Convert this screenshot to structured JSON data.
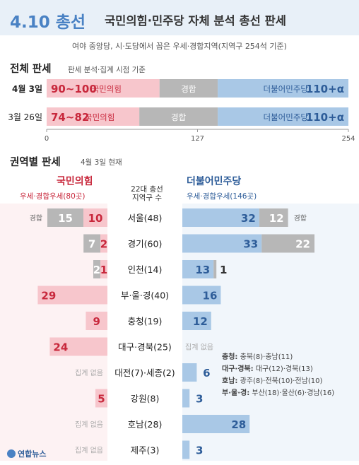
{
  "header": {
    "title_a": "4.10 총선",
    "title_b": "국민의힘·민주당 자체 분석 총선 판세",
    "subtitle": "여야 중앙당, 시·도당에서 꼽은 우세·경합지역(지역구 254석 기준)"
  },
  "overall": {
    "title": "전체 판세",
    "note": "판세 분석·집계 시점 기준"
  },
  "regional": {
    "title": "권역별 판세",
    "note": "4월 3일 현재",
    "ppp_name": "국민의힘",
    "ppp_sub": "우세·경합우세(80곳)",
    "dp_name": "더불어민주당",
    "dp_sub": "우세·경합우세(146곳)",
    "center_head_1": "22대 총선",
    "center_head_2": "지역구 수",
    "contested_label": "경합",
    "no_count_label": "집계 없음"
  },
  "legend_notes": [
    {
      "bold": "충청:",
      "rest": " 충북(8)·충남(11)"
    },
    {
      "bold": "대구·경북:",
      "rest": " 대구(12)·경북(13)"
    },
    {
      "bold": "호남:",
      "rest": " 광주(8)·전북(10)·전남(10)"
    },
    {
      "bold": "부·울·경:",
      "rest": " 부산(18)·울산(6)·경남(16)"
    }
  ],
  "logo": "연합뉴스",
  "colors": {
    "ppp": "#c8283c",
    "ppp_light": "#f7c6cc",
    "dp": "#2e5d99",
    "dp_light": "#a9c8e6",
    "contested": "#b7b7b7",
    "header_bg": "#e8f0f8",
    "title_accent": "#4a82c4"
  },
  "chart_data": [
    {
      "type": "bar",
      "title": "전체 판세",
      "orientation": "horizontal-stacked",
      "xlim": [
        0,
        254
      ],
      "x_ticks": [
        "0",
        "127",
        "254"
      ],
      "rows": [
        {
          "label": "4월 3일",
          "ppp_text": "90~100",
          "ppp_value": 95,
          "ppp_name": "국민의힘",
          "contested_label": "경합",
          "dp_text": "110+α",
          "dp_value": 110,
          "dp_name": "더불어민주당"
        },
        {
          "label": "3월 26일",
          "ppp_text": "74~82",
          "ppp_value": 78,
          "ppp_name": "국민의힘",
          "contested_label": "경합",
          "dp_text": "110+α",
          "dp_value": 110,
          "dp_name": "더불어민주당"
        }
      ]
    },
    {
      "type": "bar",
      "title": "권역별 판세",
      "orientation": "horizontal-diverging",
      "categories": [
        "서울(48)",
        "경기(60)",
        "인천(14)",
        "부·울·경(40)",
        "충청(19)",
        "대구·경북(25)",
        "대전(7)·세종(2)",
        "강원(8)",
        "호남(28)",
        "제주(3)"
      ],
      "series": [
        {
          "name": "국민의힘",
          "values": [
            10,
            2,
            1,
            29,
            9,
            24,
            null,
            5,
            null,
            null
          ]
        },
        {
          "name": "국민의힘 경합",
          "values": [
            15,
            7,
            2,
            null,
            null,
            null,
            null,
            null,
            null,
            null
          ]
        },
        {
          "name": "더불어민주당",
          "values": [
            32,
            33,
            13,
            16,
            12,
            null,
            6,
            3,
            28,
            3
          ]
        },
        {
          "name": "더불어민주당 경합",
          "values": [
            12,
            22,
            1,
            null,
            null,
            null,
            null,
            null,
            null,
            null
          ]
        }
      ]
    }
  ]
}
